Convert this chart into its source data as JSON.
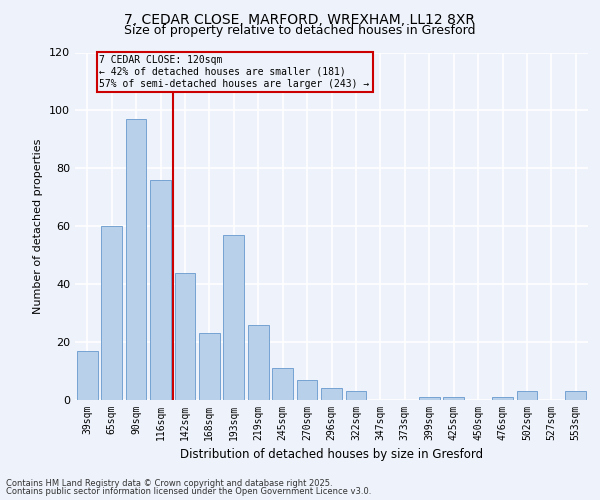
{
  "title1": "7, CEDAR CLOSE, MARFORD, WREXHAM, LL12 8XR",
  "title2": "Size of property relative to detached houses in Gresford",
  "xlabel": "Distribution of detached houses by size in Gresford",
  "ylabel": "Number of detached properties",
  "categories": [
    "39sqm",
    "65sqm",
    "90sqm",
    "116sqm",
    "142sqm",
    "168sqm",
    "193sqm",
    "219sqm",
    "245sqm",
    "270sqm",
    "296sqm",
    "322sqm",
    "347sqm",
    "373sqm",
    "399sqm",
    "425sqm",
    "450sqm",
    "476sqm",
    "502sqm",
    "527sqm",
    "553sqm"
  ],
  "values": [
    17,
    60,
    97,
    76,
    44,
    23,
    57,
    26,
    11,
    7,
    4,
    3,
    0,
    0,
    1,
    1,
    0,
    1,
    3,
    0,
    3
  ],
  "bar_color": "#b8d0ea",
  "bar_edge_color": "#6699cc",
  "highlight_index": 3,
  "highlight_line_color": "#cc0000",
  "highlight_box_color": "#cc0000",
  "annotation_line1": "7 CEDAR CLOSE: 120sqm",
  "annotation_line2": "← 42% of detached houses are smaller (181)",
  "annotation_line3": "57% of semi-detached houses are larger (243) →",
  "ylim": [
    0,
    120
  ],
  "yticks": [
    0,
    20,
    40,
    60,
    80,
    100,
    120
  ],
  "footer1": "Contains HM Land Registry data © Crown copyright and database right 2025.",
  "footer2": "Contains public sector information licensed under the Open Government Licence v3.0.",
  "bg_color": "#eef2fa",
  "grid_color": "#ffffff"
}
